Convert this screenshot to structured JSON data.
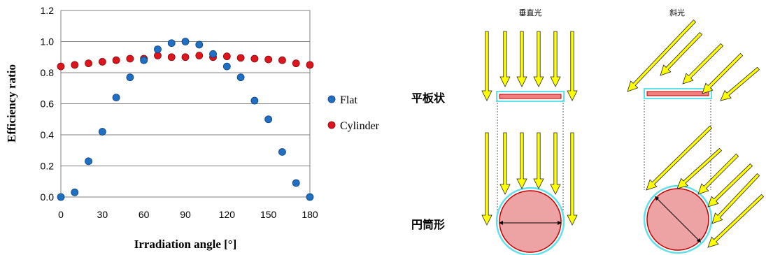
{
  "chart_data": {
    "type": "scatter",
    "xlabel": "Irradiation angle [°]",
    "ylabel": "Efficiency ratio",
    "xlim": [
      0,
      180
    ],
    "ylim": [
      0,
      1.2
    ],
    "xticks": [
      0,
      30,
      60,
      90,
      120,
      150,
      180
    ],
    "yticks": [
      0.0,
      0.2,
      0.4,
      0.6,
      0.8,
      1.0,
      1.2
    ],
    "ytick_labels": [
      "0.0",
      "0.2",
      "0.4",
      "0.6",
      "0.8",
      "1.0",
      "1.2"
    ],
    "grid": "horizontal",
    "legend_position": "right",
    "series": [
      {
        "name": "Flat",
        "color": "#1f6fc5",
        "x": [
          0,
          10,
          20,
          30,
          40,
          50,
          60,
          70,
          80,
          90,
          100,
          110,
          120,
          130,
          140,
          150,
          160,
          170,
          180
        ],
        "y": [
          0.0,
          0.03,
          0.23,
          0.42,
          0.64,
          0.77,
          0.88,
          0.95,
          0.99,
          1.0,
          0.98,
          0.92,
          0.84,
          0.77,
          0.62,
          0.5,
          0.29,
          0.09,
          0.0
        ]
      },
      {
        "name": "Cylinder",
        "color": "#e0141c",
        "x": [
          0,
          10,
          20,
          30,
          40,
          50,
          60,
          70,
          80,
          90,
          100,
          110,
          120,
          130,
          140,
          150,
          160,
          170,
          180
        ],
        "y": [
          0.84,
          0.85,
          0.86,
          0.87,
          0.88,
          0.89,
          0.89,
          0.91,
          0.9,
          0.9,
          0.91,
          0.9,
          0.905,
          0.895,
          0.89,
          0.885,
          0.88,
          0.86,
          0.85
        ]
      }
    ]
  },
  "diagram": {
    "col_vertical": "垂直光",
    "col_oblique": "斜光",
    "row_flat": "平板状",
    "row_cylinder": "円筒形",
    "arrow_color": "#ffff00",
    "panel_fill": "#f08080",
    "cyan": "#5fe0ea"
  }
}
